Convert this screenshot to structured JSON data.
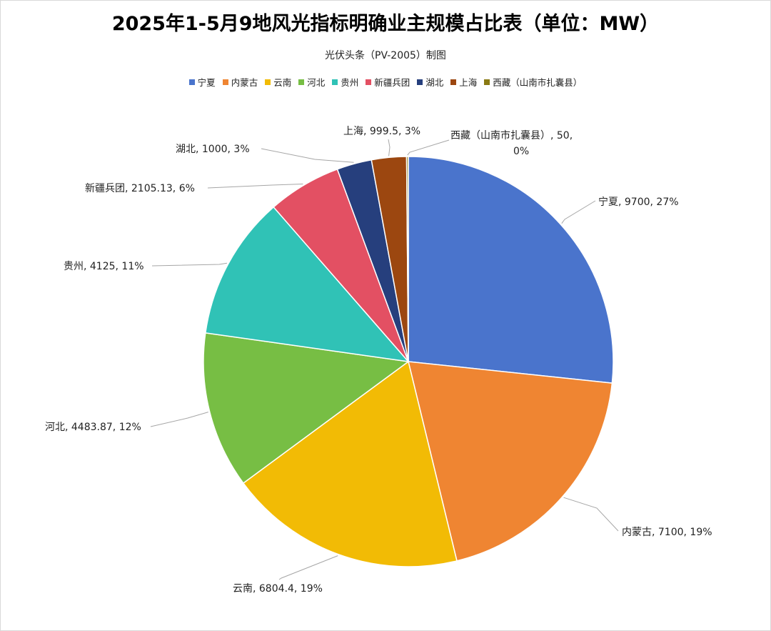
{
  "chart_data": {
    "type": "pie",
    "title": "2025年1-5月9地风光指标明确业主规模占比表（单位：MW）",
    "subtitle": "光伏头条（PV-2005）制图",
    "legend_position": "top",
    "slices": [
      {
        "name": "宁夏",
        "value": 9700,
        "percent": "27%",
        "label": "宁夏, 9700, 27%",
        "color": "#4a74cc"
      },
      {
        "name": "内蒙古",
        "value": 7100,
        "percent": "19%",
        "label": "内蒙古, 7100, 19%",
        "color": "#ef8532"
      },
      {
        "name": "云南",
        "value": 6804.4,
        "percent": "19%",
        "label": "云南, 6804.4, 19%",
        "color": "#f2bb05"
      },
      {
        "name": "河北",
        "value": 4483.87,
        "percent": "12%",
        "label": "河北, 4483.87, 12%",
        "color": "#77be44"
      },
      {
        "name": "贵州",
        "value": 4125,
        "percent": "11%",
        "label": "贵州, 4125, 11%",
        "color": "#30c2b6"
      },
      {
        "name": "新疆兵团",
        "value": 2105.13,
        "percent": "6%",
        "label": "新疆兵团, 2105.13, 6%",
        "color": "#e35063"
      },
      {
        "name": "湖北",
        "value": 1000,
        "percent": "3%",
        "label": "湖北, 1000, 3%",
        "color": "#263f7d"
      },
      {
        "name": "上海",
        "value": 999.5,
        "percent": "3%",
        "label": "上海, 999.5, 3%",
        "color": "#9c4710"
      },
      {
        "name": "西藏（山南市扎囊县）",
        "value": 50,
        "percent": "0%",
        "label": "西藏（山南市扎囊县）, 50, 0%",
        "color": "#8a7a14"
      }
    ]
  }
}
